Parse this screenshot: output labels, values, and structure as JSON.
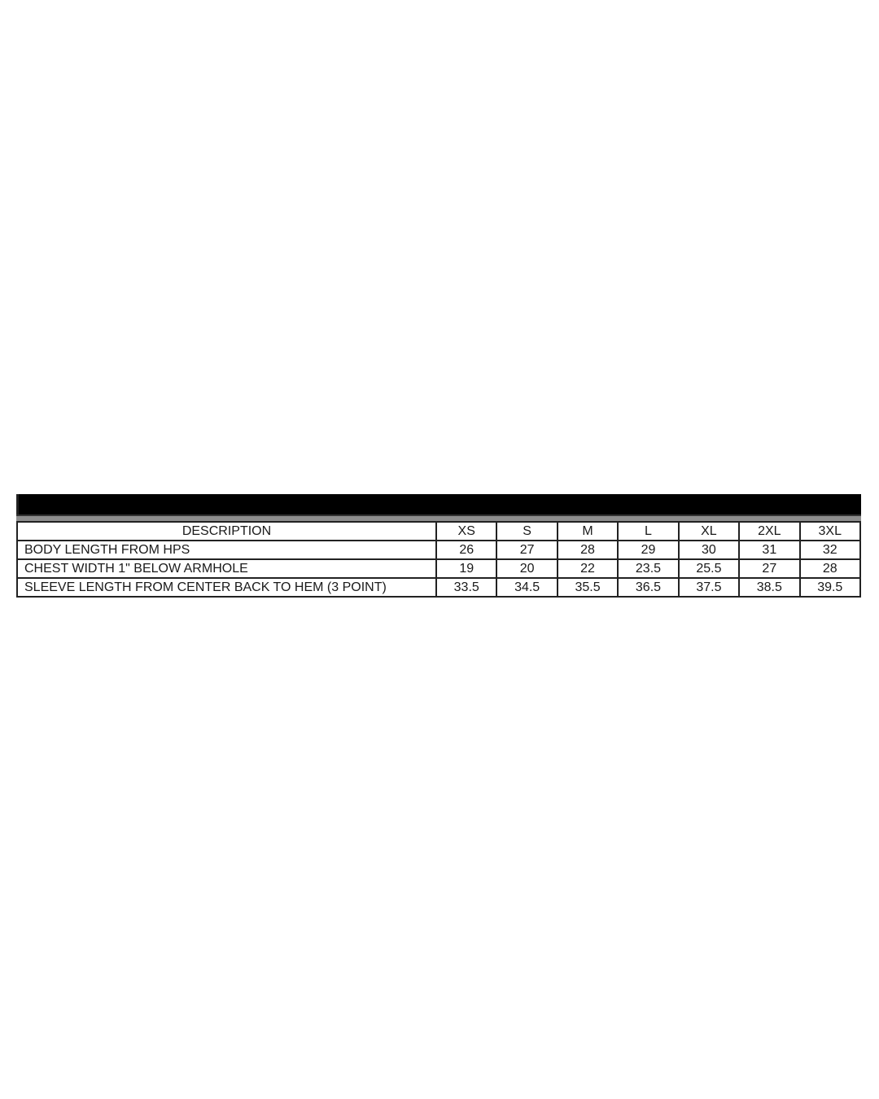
{
  "size_chart": {
    "description_header": "DESCRIPTION",
    "sizes": [
      "XS",
      "S",
      "M",
      "L",
      "XL",
      "2XL",
      "3XL"
    ],
    "rows": [
      {
        "label": "BODY LENGTH FROM HPS",
        "values": [
          "26",
          "27",
          "28",
          "29",
          "30",
          "31",
          "32"
        ]
      },
      {
        "label": "CHEST WIDTH 1\" BELOW ARMHOLE",
        "values": [
          "19",
          "20",
          "22",
          "23.5",
          "25.5",
          "27",
          "28"
        ]
      },
      {
        "label": "SLEEVE LENGTH FROM CENTER BACK TO HEM (3 POINT)",
        "values": [
          "33.5",
          "34.5",
          "35.5",
          "36.5",
          "37.5",
          "38.5",
          "39.5"
        ]
      }
    ]
  }
}
